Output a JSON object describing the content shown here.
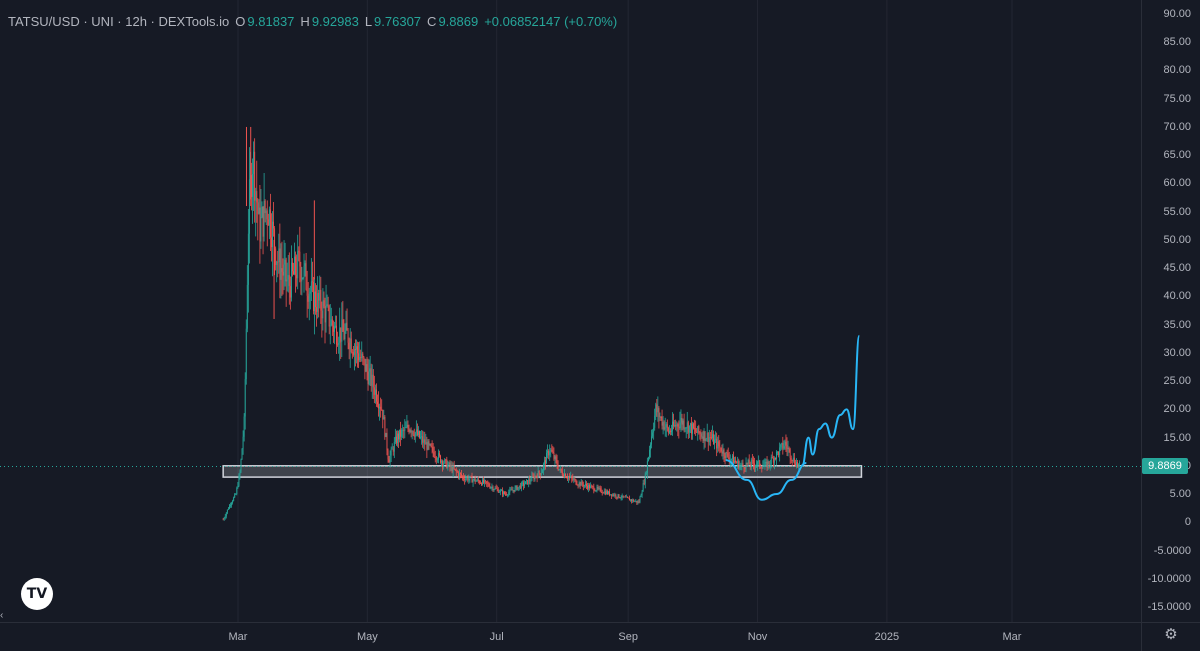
{
  "legend": {
    "symbol": "TATSU/USD · UNI · 12h · DEXTools.io",
    "o_label": "O",
    "o_value": "9.81837",
    "h_label": "H",
    "h_value": "9.92983",
    "l_label": "L",
    "l_value": "9.76307",
    "c_label": "C",
    "c_value": "9.8869",
    "change": "+0.06852147 (+0.70%)"
  },
  "logo_text": "TV",
  "gear_icon": "gear-icon",
  "current_price": "9.8869",
  "colors": {
    "up": "#26a69a",
    "down": "#ef5350",
    "projection": "#29b6f6",
    "zone": "#d1d4dc",
    "background": "#161a25"
  },
  "chart_data": {
    "type": "candlestick",
    "title": "TATSU/USD · UNI · 12h · DEXTools.io",
    "y_ticks": [
      "90.00",
      "85.00",
      "80.00",
      "75.00",
      "70.00",
      "65.00",
      "60.00",
      "55.00",
      "50.00",
      "45.00",
      "40.00",
      "35.00",
      "30.00",
      "25.00",
      "20.00",
      "15.00",
      "10.00",
      "5.00",
      "0",
      "-5.0000",
      "-10.0000",
      "-15.0000"
    ],
    "x_ticks": [
      "Mar",
      "May",
      "Jul",
      "Sep",
      "Nov",
      "2025",
      "Mar"
    ],
    "ylim": [
      -17,
      90
    ],
    "last_price": 9.8869,
    "support_zone": {
      "low": 8.0,
      "high": 10.0,
      "from": "2024-02-23",
      "to": "2024-12-20"
    },
    "price_path": [
      [
        "2024-02-23",
        0.5
      ],
      [
        "2024-02-26",
        3.0
      ],
      [
        "2024-02-29",
        5.0
      ],
      [
        "2024-03-02",
        9.0
      ],
      [
        "2024-03-04",
        18.0
      ],
      [
        "2024-03-06",
        55.0
      ],
      [
        "2024-03-08",
        65.0
      ],
      [
        "2024-03-11",
        52.0
      ],
      [
        "2024-03-15",
        56.0
      ],
      [
        "2024-03-20",
        46.0
      ],
      [
        "2024-03-25",
        42.0
      ],
      [
        "2024-03-30",
        46.0
      ],
      [
        "2024-04-05",
        40.0
      ],
      [
        "2024-04-10",
        38.0
      ],
      [
        "2024-04-16",
        34.0
      ],
      [
        "2024-04-22",
        33.0
      ],
      [
        "2024-04-28",
        29.0
      ],
      [
        "2024-05-03",
        25.0
      ],
      [
        "2024-05-08",
        20.0
      ],
      [
        "2024-05-11",
        11.0
      ],
      [
        "2024-05-15",
        15.0
      ],
      [
        "2024-05-21",
        17.0
      ],
      [
        "2024-05-28",
        14.0
      ],
      [
        "2024-06-05",
        11.0
      ],
      [
        "2024-06-15",
        8.0
      ],
      [
        "2024-06-25",
        7.0
      ],
      [
        "2024-07-05",
        5.0
      ],
      [
        "2024-07-15",
        7.0
      ],
      [
        "2024-07-22",
        9.0
      ],
      [
        "2024-07-26",
        13.0
      ],
      [
        "2024-07-31",
        9.0
      ],
      [
        "2024-08-08",
        7.0
      ],
      [
        "2024-08-16",
        6.0
      ],
      [
        "2024-08-24",
        5.0
      ],
      [
        "2024-09-02",
        4.0
      ],
      [
        "2024-09-06",
        3.5
      ],
      [
        "2024-09-09",
        8.0
      ],
      [
        "2024-09-11",
        13.0
      ],
      [
        "2024-09-14",
        20.0
      ],
      [
        "2024-09-20",
        16.0
      ],
      [
        "2024-09-26",
        18.0
      ],
      [
        "2024-10-03",
        16.0
      ],
      [
        "2024-10-10",
        15.0
      ],
      [
        "2024-10-17",
        12.0
      ],
      [
        "2024-10-24",
        10.0
      ],
      [
        "2024-10-30",
        10.5
      ],
      [
        "2024-11-05",
        10.0
      ],
      [
        "2024-11-10",
        12.0
      ],
      [
        "2024-11-14",
        14.0
      ],
      [
        "2024-11-18",
        11.0
      ],
      [
        "2024-11-21",
        9.89
      ]
    ],
    "projection_bowl": [
      [
        "2024-10-17",
        11.0
      ],
      [
        "2024-10-27",
        7.5
      ],
      [
        "2024-11-03",
        4.0
      ],
      [
        "2024-11-10",
        5.0
      ],
      [
        "2024-11-17",
        7.5
      ],
      [
        "2024-11-24",
        10.5
      ]
    ],
    "projection_wave": [
      [
        "2024-11-22",
        10.0
      ],
      [
        "2024-11-25",
        15.0
      ],
      [
        "2024-11-27",
        12.0
      ],
      [
        "2024-11-30",
        16.5
      ],
      [
        "2024-12-03",
        17.5
      ],
      [
        "2024-12-06",
        15.0
      ],
      [
        "2024-12-10",
        19.0
      ],
      [
        "2024-12-13",
        20.0
      ],
      [
        "2024-12-16",
        16.5
      ],
      [
        "2024-12-19",
        33.0
      ]
    ]
  }
}
